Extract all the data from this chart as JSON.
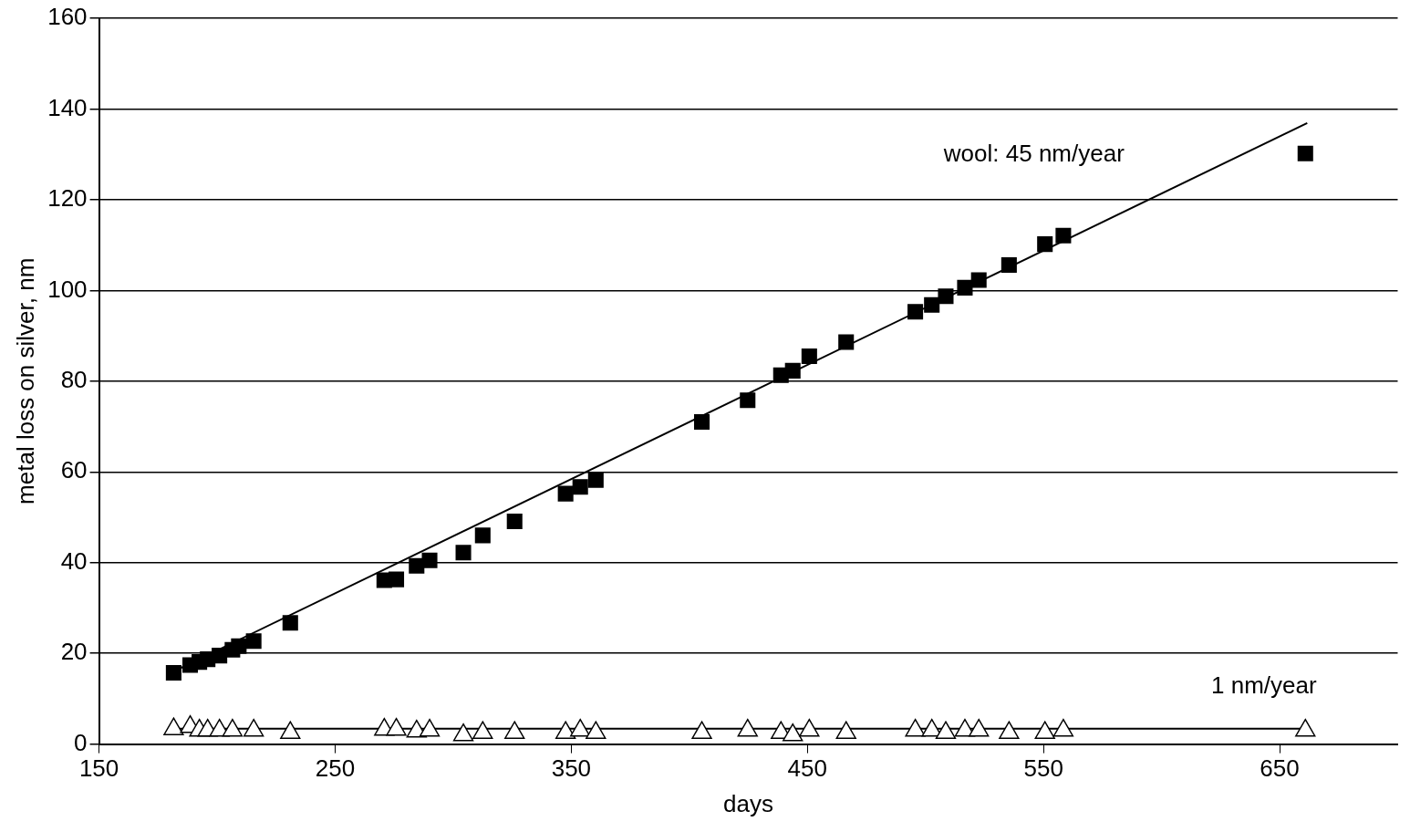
{
  "chart_data": {
    "type": "scatter",
    "xlabel": "days",
    "ylabel": "metal loss on silver, nm",
    "xlim": [
      150,
      700
    ],
    "xticks": [
      150,
      250,
      350,
      450,
      550,
      650
    ],
    "ylim": [
      0,
      160
    ],
    "yticks": [
      0,
      20,
      40,
      60,
      80,
      100,
      120,
      140,
      160
    ],
    "grid": "y",
    "legend": false,
    "series": [
      {
        "type": "scatter",
        "marker": "square",
        "color": "#000000",
        "x": [
          181.6,
          188.6,
          192.5,
          196,
          201,
          206.5,
          209.2,
          215.5,
          231,
          270.8,
          275.9,
          284.5,
          290,
          304.3,
          312.5,
          326,
          347.6,
          353.8,
          360.4,
          405.3,
          424.7,
          438.8,
          443.8,
          450.8,
          466.4,
          495.7,
          502.7,
          508.6,
          516.7,
          522.6,
          535.4,
          550.6,
          558.4,
          660.9
        ],
        "values": [
          15.7,
          17.4,
          18.1,
          18.7,
          19.5,
          20.8,
          21.6,
          22.7,
          26.7,
          36.1,
          36.3,
          39.3,
          40.5,
          42.2,
          46,
          49.1,
          55.2,
          56.7,
          58.2,
          71,
          75.8,
          81.3,
          82.3,
          85.5,
          88.6,
          95.3,
          96.8,
          98.7,
          100.6,
          102.3,
          105.6,
          110.2,
          112.1,
          130.2
        ]
      },
      {
        "type": "scatter",
        "marker": "triangle",
        "color": "#000000",
        "x": [
          181.6,
          188.6,
          192.5,
          196,
          201,
          206.5,
          215.5,
          231,
          270.8,
          275.9,
          284.5,
          290,
          304.3,
          312.5,
          326,
          347.6,
          353.8,
          360.4,
          405.3,
          424.7,
          438.8,
          443.8,
          450.8,
          466.4,
          495.7,
          502.7,
          508.6,
          516.7,
          522.6,
          535.4,
          550.6,
          558.4,
          660.9
        ],
        "values": [
          3.3,
          3.8,
          3,
          3,
          3,
          3,
          3,
          2.5,
          3.2,
          3.2,
          2.8,
          3,
          2,
          2.5,
          2.5,
          2.5,
          3,
          2.5,
          2.5,
          3,
          2.5,
          2,
          3,
          2.5,
          3,
          3,
          2.5,
          3,
          3,
          2.5,
          2.5,
          3,
          3
        ]
      },
      {
        "type": "line",
        "marker": "none",
        "color": "#000000",
        "x": [
          178.8,
          661.7
        ],
        "values": [
          15.3,
          136.9
        ]
      },
      {
        "type": "line",
        "marker": "none",
        "color": "#000000",
        "x": [
          180,
          660
        ],
        "values": [
          3.4,
          3.4
        ]
      }
    ],
    "annotations": [
      "wool: 45 nm/year",
      "1 nm/year"
    ]
  }
}
